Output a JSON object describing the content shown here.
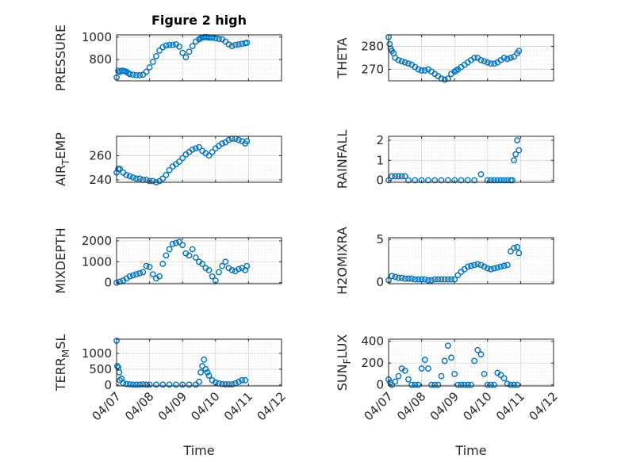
{
  "figure": {
    "title": "Figure 2 high",
    "marker_color": "#0072BD",
    "x_ticks": [
      "04/07",
      "04/08",
      "04/09",
      "04/10",
      "04/11",
      "04/12"
    ],
    "x_label": "Time"
  },
  "chart_data": [
    {
      "type": "scatter",
      "title": "Figure 2 high",
      "ylabel": "PRESSURE",
      "ylim": [
        610,
        1020
      ],
      "yticks": [
        800,
        1000
      ],
      "x": [
        0.0,
        0.05,
        0.1,
        0.15,
        0.2,
        0.25,
        0.3,
        0.35,
        0.4,
        0.5,
        0.6,
        0.7,
        0.8,
        0.9,
        1.0,
        1.1,
        1.2,
        1.3,
        1.4,
        1.5,
        1.6,
        1.7,
        1.8,
        1.9,
        2.0,
        2.1,
        2.2,
        2.3,
        2.4,
        2.5,
        2.55,
        2.6,
        2.65,
        2.7,
        2.75,
        2.8,
        2.85,
        2.9,
        3.0,
        3.1,
        3.2,
        3.3,
        3.4,
        3.5,
        3.6,
        3.7,
        3.8,
        3.9,
        3.95
      ],
      "y": [
        640,
        700,
        690,
        700,
        700,
        695,
        690,
        680,
        670,
        665,
        660,
        660,
        665,
        690,
        730,
        780,
        830,
        880,
        910,
        925,
        930,
        930,
        935,
        915,
        860,
        820,
        870,
        920,
        960,
        980,
        990,
        995,
        1000,
        1000,
        1000,
        995,
        995,
        995,
        990,
        985,
        980,
        960,
        935,
        920,
        930,
        935,
        940,
        945,
        950
      ]
    },
    {
      "type": "scatter",
      "ylabel": "THETA",
      "ylim": [
        265,
        285
      ],
      "yticks": [
        270,
        280
      ],
      "x": [
        0.0,
        0.03,
        0.06,
        0.1,
        0.15,
        0.2,
        0.3,
        0.4,
        0.5,
        0.6,
        0.7,
        0.8,
        0.9,
        1.0,
        1.1,
        1.2,
        1.3,
        1.4,
        1.5,
        1.6,
        1.7,
        1.8,
        1.9,
        2.0,
        2.05,
        2.1,
        2.2,
        2.3,
        2.4,
        2.5,
        2.6,
        2.7,
        2.8,
        2.9,
        3.0,
        3.1,
        3.2,
        3.3,
        3.4,
        3.5,
        3.6,
        3.7,
        3.8,
        3.9,
        3.95
      ],
      "y": [
        284,
        281,
        279,
        278,
        277,
        275,
        274,
        273.5,
        273,
        272.5,
        272,
        271,
        270,
        269.5,
        269.5,
        270,
        269,
        268,
        267,
        266,
        265.5,
        266,
        268,
        269,
        269.5,
        270,
        271,
        272,
        273,
        274,
        275,
        275,
        274,
        273.5,
        273,
        272.5,
        272.5,
        273,
        274,
        275,
        274.5,
        275,
        275.5,
        277,
        278
      ]
    },
    {
      "type": "scatter",
      "ylabel": "AIR_TEMP",
      "ylim": [
        238,
        276
      ],
      "yticks": [
        240,
        260
      ],
      "x": [
        0.0,
        0.05,
        0.1,
        0.2,
        0.3,
        0.4,
        0.5,
        0.6,
        0.7,
        0.8,
        0.9,
        1.0,
        1.1,
        1.2,
        1.3,
        1.4,
        1.5,
        1.6,
        1.7,
        1.8,
        1.9,
        2.0,
        2.1,
        2.2,
        2.3,
        2.4,
        2.5,
        2.6,
        2.7,
        2.8,
        2.9,
        3.0,
        3.1,
        3.2,
        3.3,
        3.4,
        3.5,
        3.6,
        3.7,
        3.8,
        3.9,
        3.95
      ],
      "y": [
        246,
        249,
        249,
        246,
        244,
        243,
        242,
        241,
        241,
        240,
        240,
        239,
        239,
        238,
        239,
        241,
        244,
        248,
        251,
        253,
        255,
        258,
        261,
        263,
        265,
        266,
        267,
        264,
        262,
        260,
        263,
        266,
        268,
        270,
        271,
        273,
        274,
        274,
        273,
        272,
        270,
        272
      ]
    },
    {
      "type": "scatter",
      "ylabel": "RAINFALL",
      "ylim": [
        -0.1,
        2.2
      ],
      "yticks": [
        0,
        1,
        2
      ],
      "x": [
        0.0,
        0.1,
        0.2,
        0.3,
        0.4,
        0.5,
        0.6,
        0.8,
        1.0,
        1.2,
        1.4,
        1.6,
        1.8,
        2.0,
        2.2,
        2.4,
        2.6,
        2.8,
        3.0,
        3.1,
        3.2,
        3.3,
        3.4,
        3.5,
        3.6,
        3.7,
        3.75,
        3.8,
        3.85,
        3.9,
        3.95
      ],
      "y": [
        0,
        0.2,
        0.2,
        0.2,
        0.2,
        0.2,
        0,
        0,
        0,
        0,
        0,
        0,
        0,
        0,
        0,
        0,
        0,
        0.3,
        0,
        0,
        0,
        0,
        0,
        0,
        0,
        0,
        0,
        1.0,
        1.3,
        2.0,
        1.5
      ]
    },
    {
      "type": "scatter",
      "ylabel": "MIXDEPTH",
      "ylim": [
        -50,
        2150
      ],
      "yticks": [
        0,
        1000,
        2000
      ],
      "x": [
        0.0,
        0.1,
        0.2,
        0.3,
        0.4,
        0.5,
        0.6,
        0.7,
        0.8,
        0.9,
        1.0,
        1.1,
        1.2,
        1.3,
        1.4,
        1.5,
        1.6,
        1.7,
        1.8,
        1.9,
        2.0,
        2.1,
        2.2,
        2.3,
        2.4,
        2.5,
        2.6,
        2.7,
        2.8,
        2.9,
        3.0,
        3.1,
        3.2,
        3.3,
        3.4,
        3.5,
        3.6,
        3.7,
        3.8,
        3.9,
        3.95
      ],
      "y": [
        0,
        50,
        100,
        200,
        300,
        350,
        400,
        450,
        500,
        800,
        750,
        400,
        200,
        300,
        900,
        1300,
        1600,
        1850,
        1900,
        1950,
        1800,
        1400,
        1300,
        1600,
        1200,
        1000,
        900,
        700,
        600,
        300,
        100,
        500,
        800,
        1000,
        700,
        600,
        550,
        650,
        700,
        600,
        800
      ]
    },
    {
      "type": "scatter",
      "ylabel": "H2OMIXRA",
      "ylim": [
        -0.2,
        5.2
      ],
      "yticks": [
        0,
        5
      ],
      "x": [
        0.0,
        0.1,
        0.2,
        0.3,
        0.4,
        0.5,
        0.6,
        0.7,
        0.8,
        0.9,
        1.0,
        1.1,
        1.2,
        1.3,
        1.4,
        1.5,
        1.6,
        1.7,
        1.8,
        1.9,
        2.0,
        2.1,
        2.2,
        2.3,
        2.4,
        2.5,
        2.6,
        2.7,
        2.8,
        2.9,
        3.0,
        3.1,
        3.2,
        3.3,
        3.4,
        3.5,
        3.6,
        3.7,
        3.8,
        3.9,
        3.95
      ],
      "y": [
        0.2,
        0.7,
        0.6,
        0.5,
        0.5,
        0.4,
        0.4,
        0.4,
        0.3,
        0.3,
        0.3,
        0.3,
        0.2,
        0.2,
        0.3,
        0.3,
        0.3,
        0.3,
        0.3,
        0.3,
        0.3,
        0.8,
        1.2,
        1.5,
        1.8,
        1.9,
        2.0,
        2.1,
        2.0,
        1.8,
        1.6,
        1.5,
        1.6,
        1.7,
        1.8,
        1.9,
        2.0,
        3.6,
        4.0,
        4.1,
        3.4
      ]
    },
    {
      "type": "scatter",
      "ylabel": "TERR_MSL",
      "ylim": [
        -30,
        1450
      ],
      "yticks": [
        0,
        500,
        1000
      ],
      "x": [
        0.0,
        0.02,
        0.05,
        0.08,
        0.1,
        0.15,
        0.2,
        0.3,
        0.4,
        0.5,
        0.6,
        0.7,
        0.8,
        0.9,
        1.0,
        1.2,
        1.4,
        1.6,
        1.8,
        2.0,
        2.2,
        2.4,
        2.5,
        2.55,
        2.6,
        2.65,
        2.7,
        2.75,
        2.8,
        2.9,
        3.0,
        3.1,
        3.2,
        3.3,
        3.4,
        3.5,
        3.6,
        3.7,
        3.8,
        3.9
      ],
      "y": [
        1400,
        600,
        550,
        400,
        150,
        200,
        60,
        30,
        20,
        10,
        10,
        10,
        20,
        10,
        10,
        10,
        10,
        10,
        10,
        10,
        10,
        10,
        100,
        400,
        600,
        800,
        500,
        400,
        300,
        150,
        80,
        50,
        30,
        20,
        20,
        20,
        50,
        100,
        150,
        150
      ]
    },
    {
      "type": "scatter",
      "ylabel": "SUN_FLUX",
      "ylim": [
        -10,
        420
      ],
      "yticks": [
        0,
        200,
        400
      ],
      "x": [
        0.0,
        0.05,
        0.1,
        0.2,
        0.3,
        0.4,
        0.5,
        0.6,
        0.7,
        0.8,
        0.9,
        1.0,
        1.1,
        1.2,
        1.3,
        1.4,
        1.5,
        1.6,
        1.7,
        1.8,
        1.9,
        2.0,
        2.1,
        2.2,
        2.3,
        2.4,
        2.5,
        2.6,
        2.7,
        2.8,
        2.9,
        3.0,
        3.1,
        3.2,
        3.3,
        3.4,
        3.5,
        3.6,
        3.7,
        3.8,
        3.9
      ],
      "y": [
        50,
        20,
        0,
        30,
        80,
        150,
        130,
        50,
        0,
        0,
        0,
        150,
        230,
        150,
        0,
        0,
        0,
        80,
        220,
        360,
        250,
        100,
        0,
        0,
        0,
        0,
        0,
        220,
        320,
        280,
        100,
        0,
        0,
        0,
        110,
        90,
        60,
        10,
        0,
        0,
        0
      ]
    }
  ]
}
